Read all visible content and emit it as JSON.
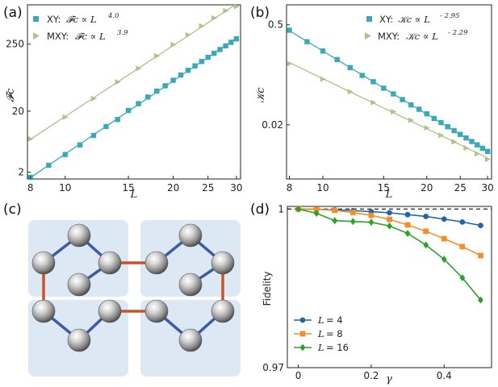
{
  "panel_labels": [
    "(a)",
    "(b)",
    "(c)",
    "(d)"
  ],
  "colors": {
    "xy": "#3aa8b8",
    "mxy": "#a9c48c",
    "fit_xy": "#3aa8b8",
    "fit_mxy": "#a9c48c",
    "lattice_bg": "#dde8f5",
    "lattice_intra": "#3b5ba5",
    "lattice_inter": "#c8532b",
    "l4": "#2166ac",
    "l8": "#f28e2b",
    "l16": "#2ca02c"
  },
  "chart_data": [
    {
      "type": "scatter",
      "panel": "(a)",
      "xlabel": "L",
      "ylabel": "𝓕c",
      "xscale": "log",
      "yscale": "log",
      "xlim": [
        7.85,
        30.8
      ],
      "ylim": [
        1.55,
        1100
      ],
      "xticks": [
        8,
        10,
        15,
        20,
        25,
        30
      ],
      "yticks": [
        2,
        20,
        250
      ],
      "legend_position": "top-left",
      "series": [
        {
          "name": "XY",
          "legend_text": "XY:",
          "legend_formula": "𝓕c ∝ L",
          "legend_exp": "4.0",
          "marker": "square",
          "exponent": 4.0,
          "x": [
            8,
            9,
            10,
            11,
            12,
            13,
            14,
            15,
            16,
            17,
            18,
            19,
            20,
            21,
            22,
            23,
            24,
            25,
            26,
            27,
            28,
            29,
            30
          ],
          "y": [
            1.65,
            2.6,
            3.9,
            5.6,
            8.0,
            11.2,
            14.6,
            20.5,
            26.5,
            34,
            42.5,
            52,
            64,
            78,
            93,
            110,
            130,
            152,
            177,
            204,
            234,
            268,
            305
          ]
        },
        {
          "name": "MXY",
          "legend_text": "MXY:",
          "legend_formula": "𝓕c ∝ L",
          "legend_exp": "3.9",
          "marker": "triangle-right",
          "exponent": 3.9,
          "x": [
            8,
            10,
            12,
            14,
            16,
            18,
            20,
            22,
            24,
            26,
            28,
            30
          ],
          "y": [
            7,
            16,
            32,
            60,
            100,
            160,
            245,
            355,
            495,
            670,
            880,
            1030
          ]
        }
      ]
    },
    {
      "type": "scatter",
      "panel": "(b)",
      "xlabel": "L",
      "ylabel": "𝒦c",
      "xscale": "log",
      "yscale": "log",
      "xlim": [
        7.85,
        30.8
      ],
      "ylim": [
        0.0035,
        0.95
      ],
      "xticks": [
        8,
        10,
        15,
        20,
        25,
        30
      ],
      "yticks": [
        0.02,
        0.5
      ],
      "legend_position": "top-right",
      "series": [
        {
          "name": "XY",
          "legend_text": "XY:",
          "legend_formula": "𝒦c ∝ L",
          "legend_exp": "- 2.95",
          "marker": "square",
          "exponent": -2.95,
          "x": [
            8,
            9,
            10,
            11,
            12,
            13,
            14,
            15,
            16,
            17,
            18,
            19,
            20,
            21,
            22,
            23,
            24,
            25,
            26,
            27,
            28,
            29,
            30
          ],
          "y": [
            0.42,
            0.29,
            0.215,
            0.163,
            0.126,
            0.098,
            0.08,
            0.065,
            0.054,
            0.045,
            0.038,
            0.033,
            0.0285,
            0.0245,
            0.0215,
            0.0188,
            0.0166,
            0.0147,
            0.0131,
            0.0117,
            0.0105,
            0.0094,
            0.0085
          ]
        },
        {
          "name": "MXY",
          "legend_text": "MXY:",
          "legend_formula": "𝒦c ∝ L",
          "legend_exp": "- 2.29",
          "marker": "triangle-right",
          "exponent": -2.29,
          "x": [
            8,
            10,
            12,
            14,
            16,
            18,
            20,
            22,
            24,
            26,
            28,
            30
          ],
          "y": [
            0.143,
            0.087,
            0.058,
            0.041,
            0.0305,
            0.0232,
            0.0181,
            0.0143,
            0.0116,
            0.0095,
            0.0079,
            0.0066
          ]
        }
      ]
    },
    {
      "type": "line",
      "panel": "(d)",
      "xlabel": "γ",
      "ylabel": "Fidelity",
      "xlim": [
        -0.03,
        0.53
      ],
      "ylim": [
        0.97,
        1.0005
      ],
      "xticks": [
        0,
        0.2,
        0.4
      ],
      "yticks": [
        0.97,
        1
      ],
      "ytick_labels": [
        "0.97",
        "1"
      ],
      "reference_line": 1,
      "legend_position": "bottom-left",
      "x": [
        0,
        0.05,
        0.1,
        0.15,
        0.2,
        0.25,
        0.3,
        0.35,
        0.4,
        0.45,
        0.5
      ],
      "series": [
        {
          "name": "L = 4",
          "legend_label": "L",
          "legend_value": "= 4",
          "marker": "circle",
          "values": [
            1.0,
            0.99995,
            0.99985,
            0.9997,
            0.9995,
            0.9993,
            0.99895,
            0.9986,
            0.9981,
            0.99755,
            0.9969
          ]
        },
        {
          "name": "L = 8",
          "legend_label": "L",
          "legend_value": "= 8",
          "marker": "square",
          "values": [
            1.0,
            0.99995,
            0.99975,
            0.99935,
            0.9988,
            0.99805,
            0.997,
            0.9958,
            0.9944,
            0.9929,
            0.9912
          ]
        },
        {
          "name": "L = 16",
          "legend_label": "L",
          "legend_value": "= 16",
          "marker": "diamond",
          "values": [
            1.0,
            0.9992,
            0.9978,
            0.99765,
            0.9975,
            0.9968,
            0.9954,
            0.9932,
            0.9905,
            0.987,
            0.9828
          ]
        }
      ]
    }
  ]
}
